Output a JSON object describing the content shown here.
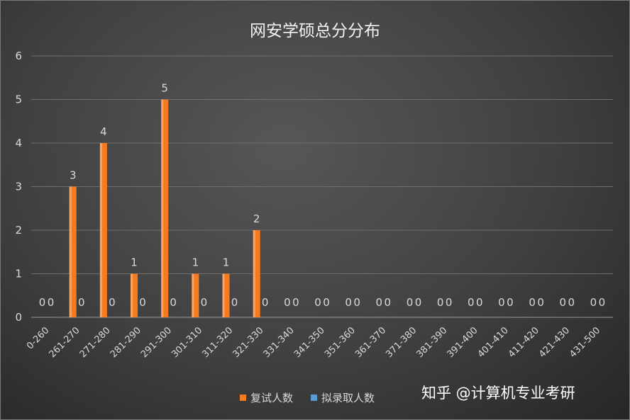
{
  "chart_data": {
    "type": "bar",
    "title": "网安学硕总分分布",
    "xlabel": "",
    "ylabel": "",
    "ylim": [
      0,
      6
    ],
    "yticks": [
      "0",
      "1",
      "2",
      "3",
      "4",
      "5",
      "6"
    ],
    "grid": true,
    "legend_position": "bottom",
    "categories": [
      "0-260",
      "261-270",
      "271-280",
      "281-290",
      "291-300",
      "301-310",
      "311-320",
      "321-330",
      "331-340",
      "341-350",
      "351-360",
      "361-370",
      "371-380",
      "381-390",
      "391-400",
      "401-410",
      "411-420",
      "421-430",
      "431-500"
    ],
    "series": [
      {
        "name": "复试人数",
        "color": "#f47b20",
        "values": [
          0,
          3,
          4,
          1,
          5,
          1,
          1,
          2,
          0,
          0,
          0,
          0,
          0,
          0,
          0,
          0,
          0,
          0,
          0
        ]
      },
      {
        "name": "拟录取人数",
        "color": "#5b9bd5",
        "values": [
          0,
          0,
          0,
          0,
          0,
          0,
          0,
          0,
          0,
          0,
          0,
          0,
          0,
          0,
          0,
          0,
          0,
          0,
          0
        ]
      }
    ]
  },
  "watermark": "知乎 @计算机专业考研"
}
